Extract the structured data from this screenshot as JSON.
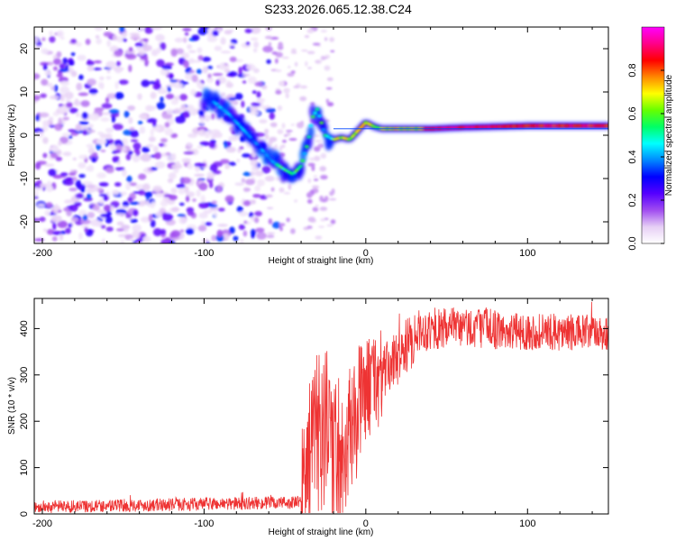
{
  "title": "S233.2026.065.12.38.C24",
  "chart_data": [
    {
      "type": "heatmap",
      "name": "spectrogram",
      "xlabel": "Height of straight line (km)",
      "ylabel": "Frequency (Hz)",
      "xlim": [
        -205,
        150
      ],
      "ylim": [
        -25,
        25
      ],
      "x_ticks": [
        -200,
        -100,
        0,
        100
      ],
      "y_ticks": [
        -20,
        -10,
        0,
        10,
        20
      ],
      "ridge": {
        "x": [
          -95,
          -85,
          -75,
          -65,
          -58,
          -50,
          -45,
          -40,
          -36,
          -33,
          -30,
          -25,
          -20,
          -15,
          -10,
          -5,
          0,
          5,
          10,
          20,
          40,
          60,
          80,
          100,
          120,
          150
        ],
        "y": [
          8,
          5,
          1,
          -3,
          -6,
          -8,
          -9,
          -7,
          -2,
          4,
          6,
          0,
          -1,
          -0.5,
          -1,
          1,
          3,
          2,
          1.5,
          1.5,
          1.5,
          1.8,
          2,
          2.2,
          2.2,
          2.2
        ]
      },
      "baseline_hz": 1.5,
      "colorbar": {
        "label": "Normalized spectral amplitude",
        "range": [
          0.0,
          1.0
        ],
        "ticks": [
          "0.0",
          "0.2",
          "0.4",
          "0.6",
          "0.8"
        ],
        "colormap": [
          "#ffffff",
          "#e6cff5",
          "#a04cf0",
          "#5500ff",
          "#0000ff",
          "#0088ff",
          "#00ffff",
          "#00ff66",
          "#66ff00",
          "#ffff00",
          "#ff8800",
          "#ff0000",
          "#ff0088",
          "#ff00ff"
        ]
      }
    },
    {
      "type": "line",
      "name": "snr",
      "xlabel": "Height of straight line (km)",
      "ylabel": "SNR (10 * v/v)",
      "xlim": [
        -205,
        150
      ],
      "ylim": [
        0,
        465
      ],
      "x_ticks": [
        -200,
        -100,
        0,
        100
      ],
      "y_ticks": [
        0,
        100,
        200,
        300,
        400
      ],
      "line_color": "#ee3333",
      "segments": [
        {
          "x0": -205,
          "x1": -40,
          "base0": 15,
          "base1": 25,
          "noise": 14
        },
        {
          "x0": -40,
          "x1": -30,
          "base0": 60,
          "base1": 200,
          "noise": 150
        },
        {
          "x0": -30,
          "x1": -15,
          "base0": 200,
          "base1": 120,
          "noise": 190
        },
        {
          "x0": -15,
          "x1": -3,
          "base0": 130,
          "base1": 240,
          "noise": 140
        },
        {
          "x0": -3,
          "x1": 10,
          "base0": 260,
          "base1": 300,
          "noise": 110
        },
        {
          "x0": 10,
          "x1": 30,
          "base0": 300,
          "base1": 380,
          "noise": 60
        },
        {
          "x0": 30,
          "x1": 80,
          "base0": 395,
          "base1": 405,
          "noise": 45
        },
        {
          "x0": 80,
          "x1": 150,
          "base0": 395,
          "base1": 390,
          "noise": 40
        }
      ]
    }
  ]
}
